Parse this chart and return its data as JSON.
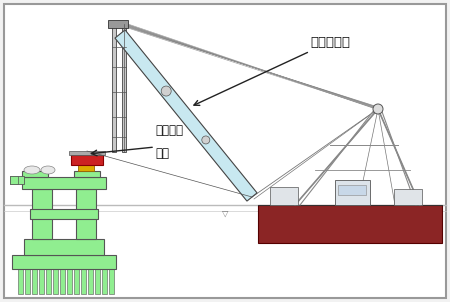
{
  "bg_color": "#f2f2f2",
  "border_color": "#999999",
  "water_color": "#aaaaaa",
  "pier_color": "#90EE90",
  "pier_outline": "#555555",
  "red_color": "#cc2222",
  "yellow_color": "#ddaa00",
  "crane_boom_color": "#c8e8f0",
  "crane_boom_outline": "#444444",
  "ship_hull_color": "#8b2525",
  "ship_deck_color": "#e0e0e0",
  "cable_color": "#777777",
  "mast_color": "#c8c8c8",
  "mast_outline": "#444444",
  "text_color": "#111111",
  "label_crane": "クレーン船",
  "label_girder_1": "損傷した",
  "label_girder_2": "橋桁",
  "water_level_marker": "▽"
}
